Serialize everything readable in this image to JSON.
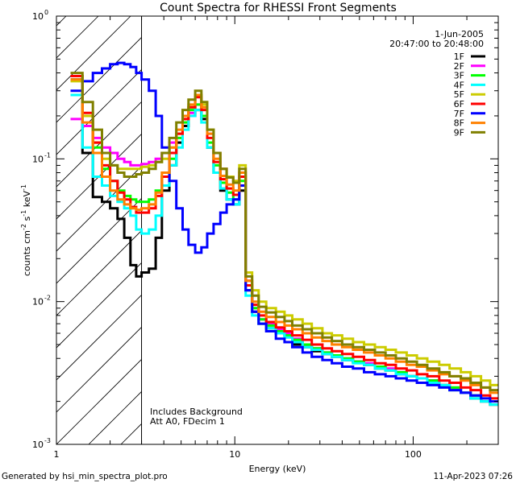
{
  "chart_data": {
    "type": "line",
    "title": "Count Spectra for RHESSI Front Segments",
    "xlabel": "Energy (keV)",
    "ylabel": "counts cm",
    "ylabel_sup1": "-2",
    "ylabel_mid": " s",
    "ylabel_sup2": "-1",
    "ylabel_end": " keV",
    "ylabel_sup3": "-1",
    "xscale": "log",
    "yscale": "log",
    "xlim": [
      1,
      300
    ],
    "ylim": [
      0.001,
      1
    ],
    "x_tick_labels": [
      {
        "value": 1,
        "label": "1"
      },
      {
        "value": 10,
        "label": "10"
      },
      {
        "value": 100,
        "label": "100"
      }
    ],
    "y_tick_labels": [
      {
        "value": 1,
        "base": "10",
        "exp": "0"
      },
      {
        "value": 0.1,
        "base": "10",
        "exp": "-1"
      },
      {
        "value": 0.01,
        "base": "10",
        "exp": "-2"
      },
      {
        "value": 0.001,
        "base": "10",
        "exp": "-3"
      }
    ],
    "hatched_region": {
      "x_from": 1,
      "x_to": 3
    },
    "date": "1-Jun-2005",
    "time_range": "20:47:00 to 20:48:00",
    "annotations": [
      "Includes Background",
      "Att A0, FDecim 1"
    ],
    "footer_left": "Generated by hsi_min_spectra_plot.pro",
    "footer_right": "11-Apr-2023 07:26",
    "series": [
      {
        "name": "1F",
        "color": "#000000",
        "x": [
          1.2,
          1.4,
          1.6,
          1.8,
          2.0,
          2.2,
          2.4,
          2.6,
          2.8,
          3.0,
          3.3,
          3.6,
          3.9,
          4.3,
          4.7,
          5.1,
          5.5,
          6.0,
          6.5,
          7.0,
          7.6,
          8.3,
          9.0,
          9.8,
          10.6,
          11.5,
          12.5,
          13.6,
          15,
          17,
          19,
          21,
          24,
          27,
          31,
          35,
          40,
          46,
          53,
          61,
          70,
          80,
          92,
          105,
          120,
          140,
          160,
          185,
          210,
          240,
          270
        ],
        "y": [
          0.36,
          0.11,
          0.054,
          0.05,
          0.045,
          0.038,
          0.028,
          0.018,
          0.015,
          0.016,
          0.017,
          0.028,
          0.06,
          0.09,
          0.13,
          0.17,
          0.2,
          0.22,
          0.19,
          0.12,
          0.08,
          0.06,
          0.052,
          0.048,
          0.06,
          0.012,
          0.0085,
          0.007,
          0.0065,
          0.006,
          0.0058,
          0.005,
          0.0048,
          0.0045,
          0.0043,
          0.0041,
          0.0039,
          0.0038,
          0.0036,
          0.0034,
          0.0033,
          0.0031,
          0.003,
          0.0029,
          0.0028,
          0.0026,
          0.0024,
          0.0023,
          0.0021,
          0.002,
          0.0019
        ]
      },
      {
        "name": "2F",
        "color": "#ff00ff",
        "x": [
          1.2,
          1.4,
          1.6,
          1.8,
          2.0,
          2.2,
          2.4,
          2.6,
          2.8,
          3.0,
          3.3,
          3.6,
          3.9,
          4.3,
          4.7,
          5.1,
          5.5,
          6.0,
          6.5,
          7.0,
          7.6,
          8.3,
          9.0,
          9.8,
          10.6,
          11.5,
          12.5,
          13.6,
          15,
          17,
          19,
          21,
          24,
          27,
          31,
          35,
          40,
          46,
          53,
          61,
          70,
          80,
          92,
          105,
          120,
          140,
          160,
          185,
          210,
          240,
          270
        ],
        "y": [
          0.19,
          0.17,
          0.14,
          0.12,
          0.11,
          0.1,
          0.095,
          0.09,
          0.09,
          0.092,
          0.095,
          0.1,
          0.11,
          0.13,
          0.15,
          0.18,
          0.21,
          0.24,
          0.2,
          0.15,
          0.11,
          0.085,
          0.075,
          0.07,
          0.08,
          0.014,
          0.009,
          0.0075,
          0.007,
          0.0064,
          0.006,
          0.0055,
          0.005,
          0.0047,
          0.0044,
          0.0042,
          0.004,
          0.0038,
          0.0037,
          0.0035,
          0.0034,
          0.0032,
          0.003,
          0.0029,
          0.0028,
          0.0026,
          0.0025,
          0.0023,
          0.0022,
          0.002,
          0.0019
        ]
      },
      {
        "name": "3F",
        "color": "#00ff00",
        "x": [
          1.2,
          1.4,
          1.6,
          1.8,
          2.0,
          2.2,
          2.4,
          2.6,
          2.8,
          3.0,
          3.3,
          3.6,
          3.9,
          4.3,
          4.7,
          5.1,
          5.5,
          6.0,
          6.5,
          7.0,
          7.6,
          8.3,
          9.0,
          9.8,
          10.6,
          11.5,
          12.5,
          13.6,
          15,
          17,
          19,
          21,
          24,
          27,
          31,
          35,
          40,
          46,
          53,
          61,
          70,
          80,
          92,
          105,
          120,
          140,
          160,
          185,
          210,
          240,
          270
        ],
        "y": [
          0.38,
          0.2,
          0.12,
          0.085,
          0.07,
          0.06,
          0.055,
          0.052,
          0.05,
          0.05,
          0.052,
          0.06,
          0.075,
          0.1,
          0.14,
          0.18,
          0.22,
          0.24,
          0.2,
          0.13,
          0.09,
          0.068,
          0.058,
          0.052,
          0.07,
          0.013,
          0.009,
          0.0075,
          0.0068,
          0.0062,
          0.0058,
          0.0054,
          0.005,
          0.0047,
          0.0044,
          0.0042,
          0.004,
          0.0038,
          0.0036,
          0.0035,
          0.0033,
          0.0032,
          0.003,
          0.0029,
          0.0028,
          0.0026,
          0.0025,
          0.0023,
          0.0022,
          0.002,
          0.0019
        ]
      },
      {
        "name": "4F",
        "color": "#00ffff",
        "x": [
          1.2,
          1.4,
          1.6,
          1.8,
          2.0,
          2.2,
          2.4,
          2.6,
          2.8,
          3.0,
          3.3,
          3.6,
          3.9,
          4.3,
          4.7,
          5.1,
          5.5,
          6.0,
          6.5,
          7.0,
          7.6,
          8.3,
          9.0,
          9.8,
          10.6,
          11.5,
          12.5,
          13.6,
          15,
          17,
          19,
          21,
          24,
          27,
          31,
          35,
          40,
          46,
          53,
          61,
          70,
          80,
          92,
          105,
          120,
          140,
          160,
          185,
          210,
          240,
          270
        ],
        "y": [
          0.28,
          0.12,
          0.075,
          0.065,
          0.055,
          0.05,
          0.045,
          0.04,
          0.032,
          0.03,
          0.032,
          0.04,
          0.065,
          0.09,
          0.12,
          0.16,
          0.2,
          0.22,
          0.18,
          0.12,
          0.08,
          0.062,
          0.052,
          0.048,
          0.065,
          0.011,
          0.008,
          0.007,
          0.0065,
          0.006,
          0.0056,
          0.0052,
          0.0048,
          0.0046,
          0.0043,
          0.0041,
          0.0039,
          0.0037,
          0.0036,
          0.0034,
          0.0033,
          0.0031,
          0.003,
          0.0029,
          0.0027,
          0.0026,
          0.0024,
          0.0023,
          0.0021,
          0.002,
          0.0019
        ]
      },
      {
        "name": "5F",
        "color": "#cccc00",
        "x": [
          1.2,
          1.4,
          1.6,
          1.8,
          2.0,
          2.2,
          2.4,
          2.6,
          2.8,
          3.0,
          3.3,
          3.6,
          3.9,
          4.3,
          4.7,
          5.1,
          5.5,
          6.0,
          6.5,
          7.0,
          7.6,
          8.3,
          9.0,
          9.8,
          10.6,
          11.5,
          12.5,
          13.6,
          15,
          17,
          19,
          21,
          24,
          27,
          31,
          35,
          40,
          46,
          53,
          61,
          70,
          80,
          92,
          105,
          120,
          140,
          160,
          185,
          210,
          240,
          270
        ],
        "y": [
          0.35,
          0.2,
          0.13,
          0.1,
          0.09,
          0.085,
          0.085,
          0.085,
          0.085,
          0.088,
          0.09,
          0.095,
          0.1,
          0.12,
          0.15,
          0.19,
          0.23,
          0.28,
          0.24,
          0.16,
          0.11,
          0.085,
          0.075,
          0.07,
          0.09,
          0.016,
          0.012,
          0.01,
          0.009,
          0.0085,
          0.008,
          0.0075,
          0.007,
          0.0065,
          0.006,
          0.0058,
          0.0055,
          0.0052,
          0.005,
          0.0048,
          0.0046,
          0.0044,
          0.0042,
          0.004,
          0.0038,
          0.0036,
          0.0034,
          0.0032,
          0.003,
          0.0028,
          0.0026
        ]
      },
      {
        "name": "6F",
        "color": "#ff0000",
        "x": [
          1.2,
          1.4,
          1.6,
          1.8,
          2.0,
          2.2,
          2.4,
          2.6,
          2.8,
          3.0,
          3.3,
          3.6,
          3.9,
          4.3,
          4.7,
          5.1,
          5.5,
          6.0,
          6.5,
          7.0,
          7.6,
          8.3,
          9.0,
          9.8,
          10.6,
          11.5,
          12.5,
          13.6,
          15,
          17,
          19,
          21,
          24,
          27,
          31,
          35,
          40,
          46,
          53,
          61,
          70,
          80,
          92,
          105,
          120,
          140,
          160,
          185,
          210,
          240,
          270
        ],
        "y": [
          0.38,
          0.21,
          0.13,
          0.09,
          0.07,
          0.058,
          0.052,
          0.046,
          0.042,
          0.042,
          0.045,
          0.055,
          0.075,
          0.11,
          0.15,
          0.19,
          0.23,
          0.27,
          0.22,
          0.14,
          0.095,
          0.072,
          0.062,
          0.056,
          0.075,
          0.013,
          0.0095,
          0.008,
          0.0072,
          0.0066,
          0.0062,
          0.0058,
          0.0054,
          0.005,
          0.0047,
          0.0045,
          0.0043,
          0.0041,
          0.0039,
          0.0037,
          0.0036,
          0.0034,
          0.0033,
          0.0031,
          0.003,
          0.0028,
          0.0027,
          0.0025,
          0.0024,
          0.0022,
          0.0021
        ]
      },
      {
        "name": "7F",
        "color": "#0000ff",
        "x": [
          1.2,
          1.4,
          1.6,
          1.8,
          2.0,
          2.2,
          2.4,
          2.6,
          2.8,
          3.0,
          3.3,
          3.6,
          3.9,
          4.3,
          4.7,
          5.1,
          5.5,
          6.0,
          6.5,
          7.0,
          7.6,
          8.3,
          9.0,
          9.8,
          10.6,
          11.5,
          12.5,
          13.6,
          15,
          17,
          19,
          21,
          24,
          27,
          31,
          35,
          40,
          46,
          53,
          61,
          70,
          80,
          92,
          105,
          120,
          140,
          160,
          185,
          210,
          240,
          270
        ],
        "y": [
          0.3,
          0.35,
          0.4,
          0.43,
          0.46,
          0.47,
          0.46,
          0.44,
          0.4,
          0.36,
          0.3,
          0.2,
          0.12,
          0.07,
          0.045,
          0.032,
          0.025,
          0.022,
          0.024,
          0.03,
          0.035,
          0.042,
          0.048,
          0.052,
          0.065,
          0.012,
          0.0085,
          0.007,
          0.0062,
          0.0055,
          0.0052,
          0.0048,
          0.0044,
          0.0041,
          0.0039,
          0.0037,
          0.0035,
          0.0034,
          0.0032,
          0.0031,
          0.003,
          0.0029,
          0.0028,
          0.0027,
          0.0026,
          0.0025,
          0.0024,
          0.0023,
          0.0022,
          0.0021,
          0.002
        ]
      },
      {
        "name": "8F",
        "color": "#ff8000",
        "x": [
          1.2,
          1.4,
          1.6,
          1.8,
          2.0,
          2.2,
          2.4,
          2.6,
          2.8,
          3.0,
          3.3,
          3.6,
          3.9,
          4.3,
          4.7,
          5.1,
          5.5,
          6.0,
          6.5,
          7.0,
          7.6,
          8.3,
          9.0,
          9.8,
          10.6,
          11.5,
          12.5,
          13.6,
          15,
          17,
          19,
          21,
          24,
          27,
          31,
          35,
          40,
          46,
          53,
          61,
          70,
          80,
          92,
          105,
          120,
          140,
          160,
          185,
          210,
          240,
          270
        ],
        "y": [
          0.36,
          0.18,
          0.11,
          0.075,
          0.06,
          0.052,
          0.048,
          0.045,
          0.044,
          0.045,
          0.048,
          0.058,
          0.08,
          0.12,
          0.16,
          0.2,
          0.24,
          0.28,
          0.23,
          0.15,
          0.1,
          0.076,
          0.066,
          0.06,
          0.08,
          0.014,
          0.01,
          0.0085,
          0.0078,
          0.0072,
          0.0068,
          0.0064,
          0.006,
          0.0056,
          0.0053,
          0.005,
          0.0048,
          0.0046,
          0.0044,
          0.0042,
          0.004,
          0.0038,
          0.0036,
          0.0035,
          0.0033,
          0.0031,
          0.003,
          0.0028,
          0.0026,
          0.0025,
          0.0023
        ]
      },
      {
        "name": "9F",
        "color": "#808000",
        "x": [
          1.2,
          1.4,
          1.6,
          1.8,
          2.0,
          2.2,
          2.4,
          2.6,
          2.8,
          3.0,
          3.3,
          3.6,
          3.9,
          4.3,
          4.7,
          5.1,
          5.5,
          6.0,
          6.5,
          7.0,
          7.6,
          8.3,
          9.0,
          9.8,
          10.6,
          11.5,
          12.5,
          13.6,
          15,
          17,
          19,
          21,
          24,
          27,
          31,
          35,
          40,
          46,
          53,
          61,
          70,
          80,
          92,
          105,
          120,
          140,
          160,
          185,
          210,
          240,
          270
        ],
        "y": [
          0.4,
          0.25,
          0.16,
          0.11,
          0.09,
          0.08,
          0.075,
          0.075,
          0.078,
          0.08,
          0.085,
          0.095,
          0.11,
          0.14,
          0.18,
          0.22,
          0.26,
          0.3,
          0.25,
          0.16,
          0.11,
          0.085,
          0.074,
          0.068,
          0.085,
          0.015,
          0.011,
          0.0092,
          0.0084,
          0.0078,
          0.0073,
          0.0068,
          0.0064,
          0.006,
          0.0056,
          0.0053,
          0.005,
          0.0048,
          0.0046,
          0.0044,
          0.0042,
          0.004,
          0.0038,
          0.0036,
          0.0034,
          0.0032,
          0.003,
          0.0029,
          0.0027,
          0.0025,
          0.0024
        ]
      }
    ]
  }
}
